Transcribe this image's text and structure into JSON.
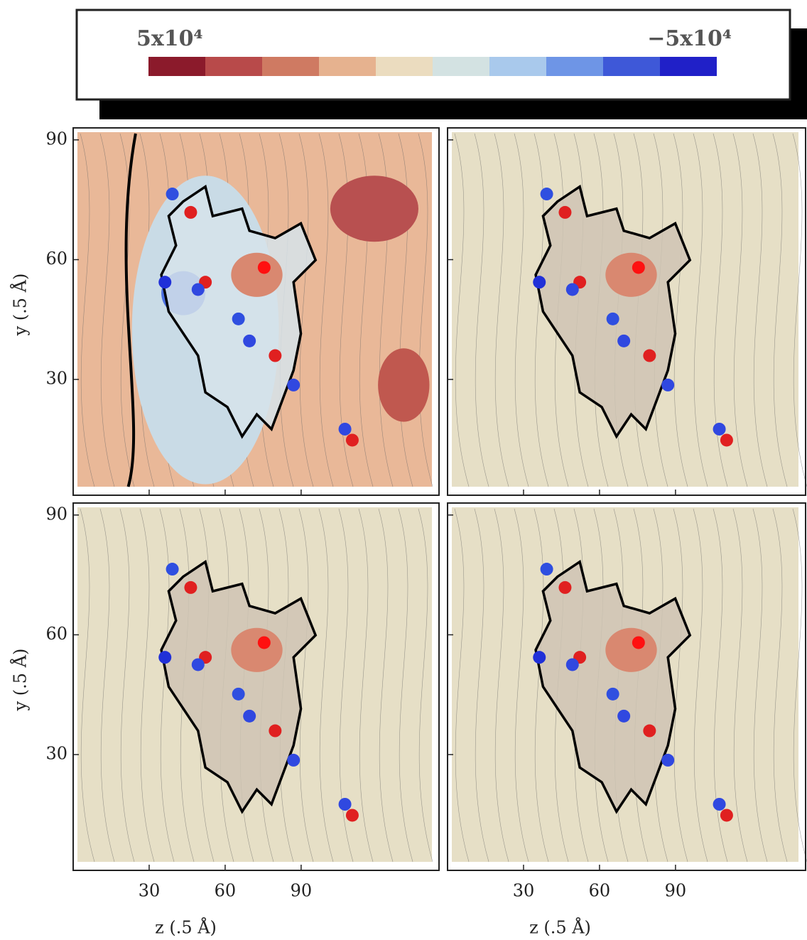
{
  "colorbar": {
    "colors": [
      "#8b1a2b",
      "#b84a4a",
      "#cf7a62",
      "#e6b28f",
      "#ebdcbf",
      "#d3e2e2",
      "#a9c9ec",
      "#6e95e6",
      "#3e58d8",
      "#2020c8"
    ],
    "vlim": [
      {
        "value": 50000,
        "label": "5x10⁴"
      },
      {
        "value": -50000,
        "label": "−5x10⁴"
      }
    ]
  },
  "chart_data": [
    {
      "type": "contour",
      "ylabel": "y (.5 Å)",
      "xlim": [
        0,
        145
      ],
      "ylim": [
        1,
        93
      ],
      "xticks": [
        30,
        60,
        90
      ],
      "yticks": [
        30,
        60,
        90
      ],
      "background": "#e9b898"
    },
    {
      "type": "contour",
      "xlim": [
        0,
        145
      ],
      "ylim": [
        1,
        93
      ],
      "xticks": [
        30,
        60,
        90
      ],
      "yticks": [
        30,
        60,
        90
      ],
      "background": "#e6dfc6"
    },
    {
      "type": "contour",
      "ylabel": "y (.5 Å)",
      "xlabel": "z (.5 Å)",
      "xlim": [
        0,
        145
      ],
      "ylim": [
        1,
        93
      ],
      "xticks": [
        30,
        60,
        90
      ],
      "yticks": [
        30,
        60,
        90
      ],
      "background": "#e6dfc6"
    },
    {
      "type": "contour",
      "xlabel": "z (.5 Å)",
      "xlim": [
        0,
        145
      ],
      "ylim": [
        1,
        93
      ],
      "xticks": [
        30,
        60,
        90
      ],
      "yticks": [
        30,
        60,
        90
      ],
      "background": "#e6dfc6"
    }
  ]
}
